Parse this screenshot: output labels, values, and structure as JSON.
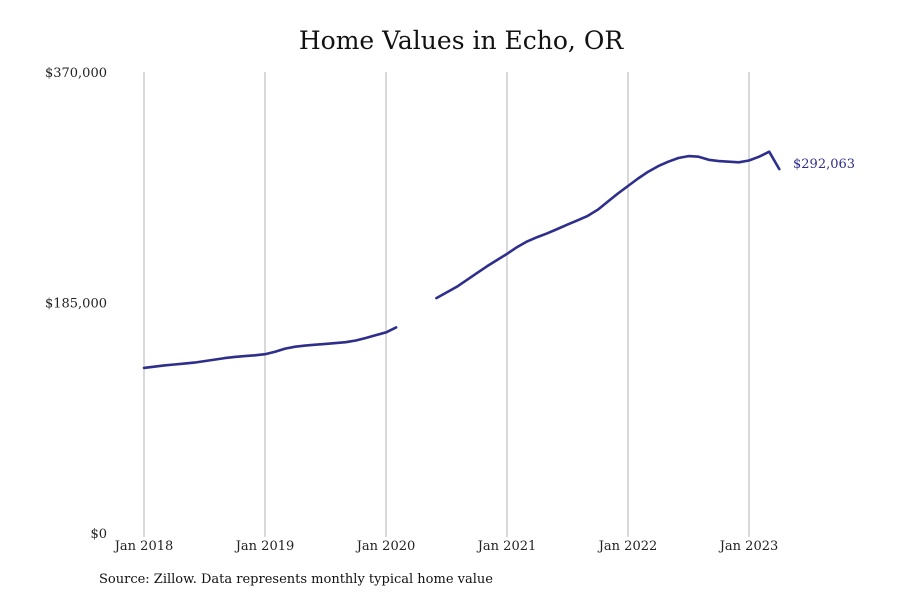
{
  "chart_title": "Home Values in Echo, OR",
  "source_note": "Source: Zillow. Data represents monthly typical home value",
  "colors": {
    "line": "#2e2e8c",
    "grid": "#b3b3b3",
    "text": "#222222"
  },
  "chart_data": {
    "type": "line",
    "title": "Home Values in Echo, OR",
    "xlabel": "",
    "ylabel": "",
    "x_tick_labels": [
      "Jan 2018",
      "Jan 2019",
      "Jan 2020",
      "Jan 2021",
      "Jan 2022",
      "Jan 2023"
    ],
    "y_tick_labels": [
      "$0",
      "$185,000",
      "$370,000"
    ],
    "y_ticks": [
      0,
      185000,
      370000
    ],
    "ylim": [
      0,
      370000
    ],
    "xlim": [
      "2018-01",
      "2023-12"
    ],
    "vertical_grid": true,
    "horizontal_grid": false,
    "end_label": "$292,063",
    "segments": [
      {
        "x": [
          "2018-01",
          "2018-02",
          "2018-03",
          "2018-04",
          "2018-05",
          "2018-06",
          "2018-07",
          "2018-08",
          "2018-09",
          "2018-10",
          "2018-11",
          "2018-12",
          "2019-01",
          "2019-02",
          "2019-03",
          "2019-04",
          "2019-05",
          "2019-06",
          "2019-07",
          "2019-08",
          "2019-09",
          "2019-10",
          "2019-11",
          "2019-12",
          "2020-01",
          "2020-02"
        ],
        "y": [
          132500,
          133500,
          134500,
          135200,
          136000,
          136800,
          138000,
          139200,
          140400,
          141300,
          142000,
          142600,
          143500,
          145500,
          148000,
          149500,
          150400,
          151100,
          151800,
          152400,
          153100,
          154500,
          156500,
          158800,
          161000,
          165000
        ]
      },
      {
        "x": [
          "2020-06",
          "2020-07",
          "2020-08",
          "2020-09",
          "2020-10",
          "2020-11",
          "2020-12",
          "2021-01",
          "2021-02",
          "2021-03",
          "2021-04",
          "2021-05",
          "2021-06",
          "2021-07",
          "2021-08",
          "2021-09",
          "2021-10",
          "2021-11",
          "2021-12",
          "2022-01",
          "2022-02",
          "2022-03",
          "2022-04",
          "2022-05",
          "2022-06",
          "2022-07",
          "2022-08",
          "2022-09",
          "2022-10",
          "2022-11",
          "2022-12",
          "2023-01",
          "2023-02",
          "2023-03",
          "2023-04"
        ],
        "y": [
          188500,
          193000,
          197500,
          203000,
          208500,
          214000,
          219000,
          224000,
          229500,
          234000,
          237500,
          240500,
          244000,
          247500,
          251000,
          254500,
          259500,
          266000,
          272500,
          278500,
          284500,
          290000,
          294500,
          298000,
          301000,
          302500,
          302000,
          299500,
          298500,
          298000,
          297500,
          299000,
          302000,
          306000,
          292063
        ]
      }
    ]
  }
}
